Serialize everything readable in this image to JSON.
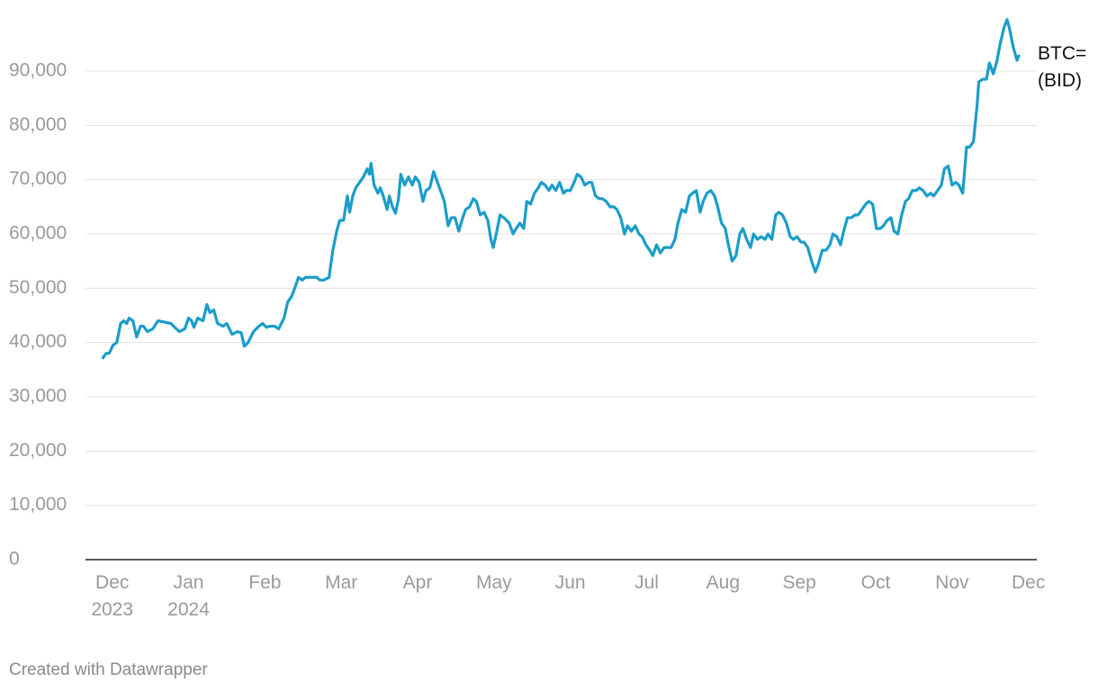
{
  "chart_data": {
    "type": "line",
    "footer": "Created with Datawrapper",
    "xlim": [
      -0.35,
      12.11
    ],
    "xticks": [
      {
        "value": 0,
        "label": "Dec 2023"
      },
      {
        "value": 1,
        "label": "Jan 2024"
      },
      {
        "value": 2,
        "label": "Feb"
      },
      {
        "value": 3,
        "label": "Mar"
      },
      {
        "value": 4,
        "label": "Apr"
      },
      {
        "value": 5,
        "label": "May"
      },
      {
        "value": 6,
        "label": "Jun"
      },
      {
        "value": 7,
        "label": "Jul"
      },
      {
        "value": 8,
        "label": "Aug"
      },
      {
        "value": 9,
        "label": "Sep"
      },
      {
        "value": 10,
        "label": "Oct"
      },
      {
        "value": 11,
        "label": "Nov"
      },
      {
        "value": 12,
        "label": "Dec"
      }
    ],
    "ylim": [
      0,
      100000
    ],
    "yticks": [
      0,
      {
        "value": 10000,
        "label": "10,000"
      },
      {
        "value": 20000,
        "label": "20,000"
      },
      {
        "value": 30000,
        "label": "30,000"
      },
      {
        "value": 40000,
        "label": "40,000"
      },
      {
        "value": 50000,
        "label": "50,000"
      },
      {
        "value": 60000,
        "label": "60,000"
      },
      {
        "value": 70000,
        "label": "70,000"
      },
      {
        "value": 80000,
        "label": "80,000"
      },
      {
        "value": 90000,
        "label": "90,000"
      }
    ],
    "grid": true,
    "x": [
      -0.13,
      -0.08,
      -0.04,
      0.01,
      0.06,
      0.11,
      0.15,
      0.19,
      0.22,
      0.27,
      0.32,
      0.37,
      0.41,
      0.46,
      0.53,
      0.6,
      0.67,
      0.77,
      0.84,
      0.88,
      0.95,
      1.0,
      1.04,
      1.07,
      1.12,
      1.19,
      1.24,
      1.28,
      1.33,
      1.38,
      1.45,
      1.5,
      1.57,
      1.64,
      1.69,
      1.73,
      1.78,
      1.85,
      1.92,
      1.97,
      2.02,
      2.06,
      2.13,
      2.18,
      2.25,
      2.3,
      2.35,
      2.39,
      2.44,
      2.49,
      2.53,
      2.61,
      2.68,
      2.72,
      2.77,
      2.84,
      2.89,
      2.94,
      2.98,
      3.03,
      3.08,
      3.11,
      3.15,
      3.19,
      3.24,
      3.29,
      3.34,
      3.37,
      3.39,
      3.43,
      3.48,
      3.51,
      3.55,
      3.6,
      3.63,
      3.67,
      3.71,
      3.75,
      3.78,
      3.83,
      3.88,
      3.93,
      3.97,
      4.02,
      4.07,
      4.11,
      4.16,
      4.21,
      4.26,
      4.3,
      4.35,
      4.4,
      4.44,
      4.49,
      4.54,
      4.59,
      4.63,
      4.68,
      4.73,
      4.77,
      4.82,
      4.87,
      4.92,
      4.96,
      4.99,
      5.03,
      5.08,
      5.13,
      5.2,
      5.25,
      5.29,
      5.34,
      5.39,
      5.43,
      5.48,
      5.53,
      5.58,
      5.62,
      5.67,
      5.72,
      5.76,
      5.81,
      5.86,
      5.91,
      5.95,
      6.0,
      6.05,
      6.09,
      6.14,
      6.19,
      6.24,
      6.28,
      6.33,
      6.38,
      6.42,
      6.47,
      6.52,
      6.57,
      6.61,
      6.66,
      6.71,
      6.75,
      6.8,
      6.85,
      6.9,
      6.94,
      6.99,
      7.04,
      7.08,
      7.13,
      7.18,
      7.23,
      7.27,
      7.32,
      7.37,
      7.41,
      7.46,
      7.51,
      7.56,
      7.6,
      7.65,
      7.7,
      7.74,
      7.79,
      7.84,
      7.89,
      7.93,
      7.98,
      8.03,
      8.07,
      8.12,
      8.17,
      8.22,
      8.26,
      8.31,
      8.36,
      8.4,
      8.45,
      8.5,
      8.55,
      8.59,
      8.64,
      8.69,
      8.73,
      8.78,
      8.83,
      8.88,
      8.92,
      8.97,
      9.02,
      9.06,
      9.11,
      9.16,
      9.21,
      9.25,
      9.3,
      9.35,
      9.4,
      9.44,
      9.49,
      9.54,
      9.58,
      9.63,
      9.68,
      9.73,
      9.77,
      9.82,
      9.87,
      9.91,
      9.96,
      10.01,
      10.06,
      10.1,
      10.15,
      10.2,
      10.24,
      10.29,
      10.34,
      10.39,
      10.43,
      10.48,
      10.53,
      10.57,
      10.62,
      10.67,
      10.72,
      10.76,
      10.81,
      10.86,
      10.9,
      10.95,
      11.0,
      11.05,
      11.09,
      11.14,
      11.19,
      11.23,
      11.28,
      11.33,
      11.35,
      11.4,
      11.45,
      11.49,
      11.54,
      11.59,
      11.63,
      11.68,
      11.72,
      11.75,
      11.8,
      11.85,
      11.88
    ],
    "series": [
      {
        "name": "BTC= (BID)",
        "color": "#1b9dc9",
        "values": [
          37000,
          38000,
          38000,
          39500,
          40000,
          43500,
          44000,
          43500,
          44500,
          44000,
          41000,
          43000,
          43000,
          42000,
          42500,
          44000,
          43800,
          43500,
          42500,
          42000,
          42500,
          44500,
          44000,
          42800,
          44500,
          44000,
          47000,
          45500,
          46000,
          43500,
          43000,
          43500,
          41500,
          42000,
          41800,
          39300,
          40000,
          42000,
          43000,
          43500,
          42800,
          43000,
          43000,
          42500,
          44500,
          47500,
          48500,
          50000,
          52000,
          51500,
          52000,
          52000,
          52000,
          51500,
          51500,
          52000,
          57000,
          60500,
          62500,
          62500,
          67000,
          64000,
          67000,
          68500,
          69500,
          70500,
          72000,
          71000,
          73000,
          69000,
          67500,
          68500,
          67000,
          64500,
          67000,
          65000,
          63800,
          66500,
          71000,
          69000,
          70500,
          69000,
          70500,
          69500,
          66000,
          68000,
          68500,
          71500,
          69500,
          68000,
          66000,
          61500,
          63000,
          63000,
          60500,
          63000,
          64500,
          65000,
          66500,
          66000,
          63500,
          64000,
          62500,
          59000,
          57500,
          60000,
          63500,
          63000,
          62000,
          60000,
          61000,
          62000,
          61000,
          66000,
          65500,
          67500,
          68500,
          69500,
          69000,
          68000,
          69000,
          68000,
          69500,
          67500,
          68000,
          68000,
          69500,
          71000,
          70500,
          69000,
          69500,
          69500,
          67000,
          66500,
          66500,
          66000,
          65000,
          65000,
          64500,
          63000,
          60000,
          61500,
          60500,
          61500,
          60000,
          59500,
          58000,
          57000,
          56000,
          58000,
          56500,
          57500,
          57500,
          57500,
          59000,
          62000,
          64500,
          64000,
          67000,
          67500,
          68000,
          64000,
          66000,
          67500,
          68000,
          67000,
          65000,
          62000,
          61000,
          58000,
          55000,
          56000,
          60000,
          61000,
          59000,
          57500,
          60000,
          59000,
          59500,
          59000,
          60000,
          59000,
          63500,
          64000,
          63500,
          62000,
          59500,
          59000,
          59500,
          58500,
          58500,
          57500,
          55000,
          53000,
          54500,
          57000,
          57000,
          58000,
          60000,
          59500,
          58000,
          60500,
          63000,
          63000,
          63500,
          63500,
          64500,
          65500,
          66000,
          65500,
          61000,
          61000,
          61500,
          62500,
          63000,
          60500,
          60000,
          63500,
          66000,
          66500,
          68000,
          68000,
          68500,
          68000,
          67000,
          67500,
          67000,
          68000,
          69000,
          72000,
          72500,
          69000,
          69500,
          69000,
          67500,
          76000,
          76000,
          77000,
          84000,
          88000,
          88500,
          88500,
          91500,
          89500,
          92000,
          95000,
          98000,
          99500,
          98000,
          94500,
          92000,
          93000
        ]
      }
    ]
  }
}
